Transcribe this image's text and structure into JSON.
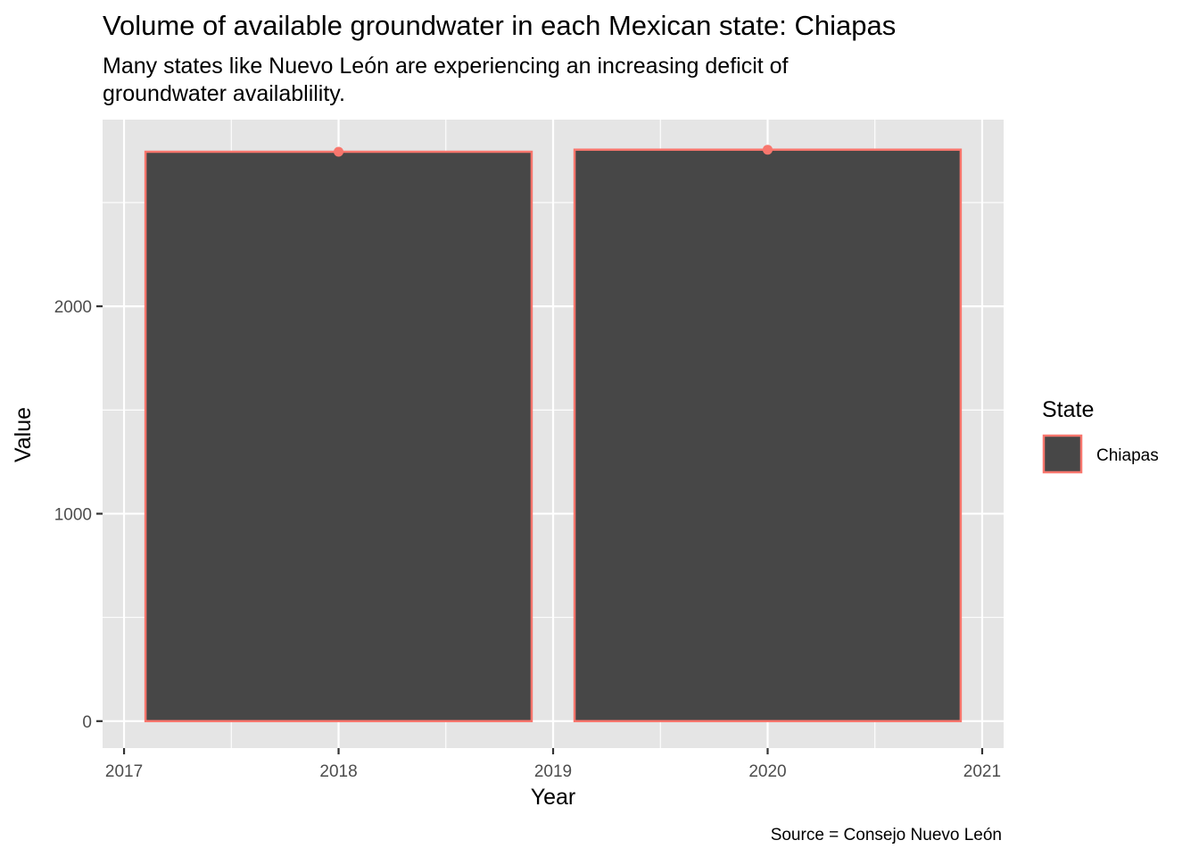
{
  "chart_data": {
    "type": "bar",
    "title": "Volume of available groundwater in each Mexican state: Chiapas",
    "subtitle_lines": [
      "Many states like Nuevo León are experiencing an increasing deficit of",
      "groundwater availablility."
    ],
    "xlabel": "Year",
    "ylabel": "Value",
    "caption": "Source = Consejo Nuevo León",
    "xlim": [
      2016.9,
      2021.1
    ],
    "ylim": [
      -130,
      2900
    ],
    "x_ticks": [
      2017,
      2018,
      2019,
      2020,
      2021
    ],
    "y_ticks": [
      0,
      1000,
      2000
    ],
    "categories": [
      2018,
      2020
    ],
    "series": [
      {
        "name": "Chiapas",
        "values": [
          2745,
          2755
        ]
      }
    ],
    "bar_width_years": 1.8,
    "legend": {
      "title": "State",
      "items": [
        "Chiapas"
      ],
      "position": "right"
    },
    "colors": {
      "fill": "#474747",
      "outline": "#f8766d",
      "panel": "#e5e5e5",
      "grid": "#ffffff"
    }
  }
}
